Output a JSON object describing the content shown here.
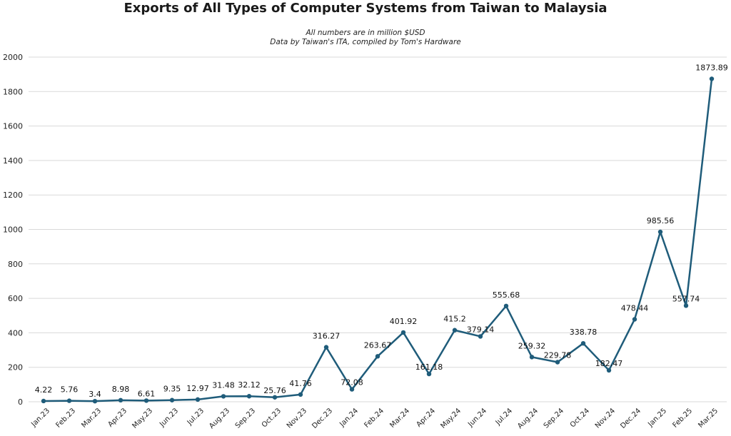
{
  "chart_data": {
    "type": "line",
    "title": "Exports of All Types of Computer Systems from Taiwan to Malaysia",
    "subtitle": [
      "All numbers are in million $USD",
      "Data by Taiwan's ITA, compiled by Tom's Hardware"
    ],
    "xlabel": "",
    "ylabel": "",
    "ylim": [
      0,
      2000
    ],
    "yticks": [
      0,
      200,
      400,
      600,
      800,
      1000,
      1200,
      1400,
      1600,
      1800,
      2000
    ],
    "grid": true,
    "categories": [
      "Jan.23",
      "Feb.23",
      "Mar.23",
      "Apr.23",
      "May.23",
      "Jun.23",
      "Jul.23",
      "Aug.23",
      "Sep.23",
      "Oct.23",
      "Nov.23",
      "Dec.23",
      "Jan.24",
      "Feb.24",
      "Mar.24",
      "Apr.24",
      "May.24",
      "Jun.24",
      "Jul.24",
      "Aug.24",
      "Sep.24",
      "Oct.24",
      "Nov.24",
      "Dec.24",
      "Jan.25",
      "Feb.25",
      "Mar.25"
    ],
    "series": [
      {
        "values": [
          4.22,
          5.76,
          3.4,
          8.98,
          6.61,
          9.35,
          12.97,
          31.48,
          32.12,
          25.76,
          41.76,
          316.27,
          72.08,
          263.67,
          401.92,
          161.18,
          415.2,
          379.14,
          555.68,
          259.32,
          229.78,
          338.78,
          182.47,
          478.44,
          985.56,
          557.74,
          1873.89
        ],
        "color": "#1f5c7a"
      }
    ]
  }
}
